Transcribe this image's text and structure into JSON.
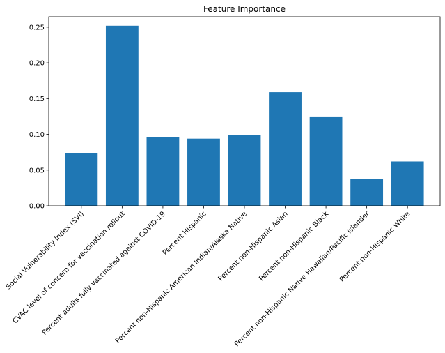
{
  "chart_data": {
    "type": "bar",
    "title": "Feature Importance",
    "xlabel": "",
    "ylabel": "",
    "categories": [
      "Social Vulnerability Index (SVI)",
      "CVAC level of concern for vaccination rollout",
      "Percent adults fully vaccinated against COVID-19",
      "Percent Hispanic",
      "Percent non-Hispanic American Indian/Alaska Native",
      "Percent non-Hispanic Asian",
      "Percent non-Hispanic Black",
      "Percent non-Hispanic Native Hawaiian/Pacific Islander",
      "Percent non-Hispanic White"
    ],
    "values": [
      0.074,
      0.252,
      0.096,
      0.094,
      0.099,
      0.159,
      0.125,
      0.038,
      0.062
    ],
    "ylim": [
      0,
      0.2645
    ],
    "yticks": [
      0.0,
      0.05,
      0.1,
      0.15,
      0.2,
      0.25
    ],
    "ytick_labels": [
      "0.00",
      "0.05",
      "0.10",
      "0.15",
      "0.20",
      "0.25"
    ],
    "bar_color": "#1f77b4",
    "grid": false,
    "legend": "none"
  }
}
